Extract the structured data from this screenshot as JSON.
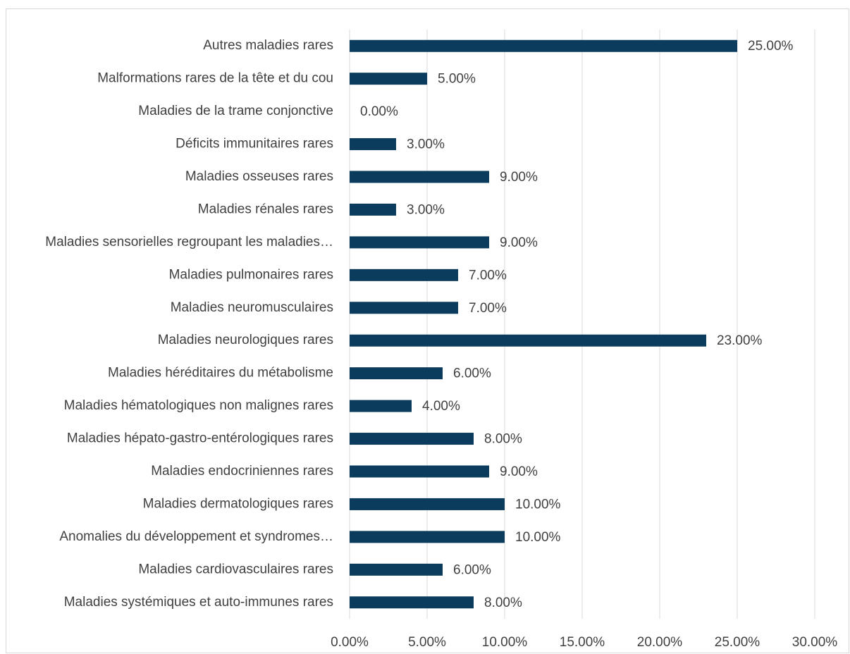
{
  "chart_data": {
    "type": "hbar",
    "categories": [
      "Autres maladies rares",
      "Malformations rares de la tête et du cou",
      "Maladies de la trame conjonctive",
      "Déficits immunitaires rares",
      "Maladies osseuses rares",
      "Maladies rénales rares",
      "Maladies sensorielles regroupant les maladies…",
      "Maladies pulmonaires rares",
      "Maladies neuromusculaires",
      "Maladies neurologiques rares",
      "Maladies héréditaires du métabolisme",
      "Maladies hématologiques non malignes rares",
      "Maladies hépato-gastro-entérologiques rares",
      "Maladies endocriniennes rares",
      "Maladies dermatologiques rares",
      "Anomalies du développement et syndromes…",
      "Maladies cardiovasculaires rares",
      "Maladies systémiques et auto-immunes rares"
    ],
    "values": [
      25,
      5,
      0,
      3,
      9,
      3,
      9,
      7,
      7,
      23,
      6,
      4,
      8,
      9,
      10,
      10,
      6,
      8
    ],
    "value_labels": [
      "25.00%",
      "5.00%",
      "0.00%",
      "3.00%",
      "9.00%",
      "3.00%",
      "9.00%",
      "7.00%",
      "7.00%",
      "23.00%",
      "6.00%",
      "4.00%",
      "8.00%",
      "9.00%",
      "10.00%",
      "10.00%",
      "6.00%",
      "8.00%"
    ],
    "color": "#0b3c5d",
    "xlim": [
      0,
      30
    ],
    "xticks": [
      {
        "value": 0,
        "label": "0.00%"
      },
      {
        "value": 5,
        "label": "5.00%"
      },
      {
        "value": 10,
        "label": "10.00%"
      },
      {
        "value": 15,
        "label": "15.00%"
      },
      {
        "value": 20,
        "label": "20.00%"
      },
      {
        "value": 25,
        "label": "25.00%"
      },
      {
        "value": 30,
        "label": "30.00%"
      }
    ],
    "grid": true
  }
}
